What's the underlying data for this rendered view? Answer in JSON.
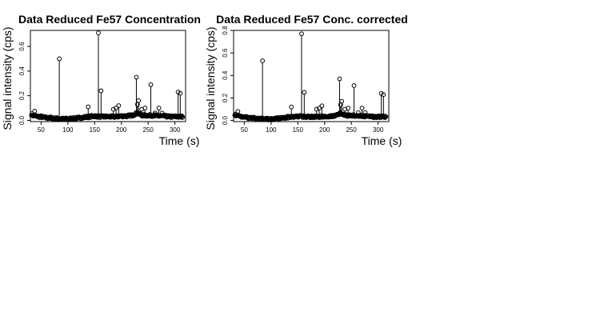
{
  "chart_data": [
    {
      "type": "scatter",
      "title": "Data Reduced Fe57 Concentration",
      "xlabel": "Time (s)",
      "ylabel": "Signal intensity (cps)",
      "xlim": [
        30,
        320
      ],
      "ylim": [
        -0.01,
        0.73
      ],
      "xticks": [
        50,
        100,
        150,
        200,
        250,
        300
      ],
      "yticks": [
        0.0,
        0.2,
        0.4,
        0.6
      ],
      "ytick_labels": [
        "0.0",
        "0.2",
        "0.4",
        "0.6"
      ],
      "grid": false,
      "baseline": [
        [
          32,
          0.05
        ],
        [
          35,
          0.04
        ],
        [
          40,
          0.035
        ],
        [
          45,
          0.03
        ],
        [
          50,
          0.03
        ],
        [
          55,
          0.025
        ],
        [
          60,
          0.02
        ],
        [
          65,
          0.02
        ],
        [
          70,
          0.02
        ],
        [
          75,
          0.015
        ],
        [
          80,
          0.015
        ],
        [
          90,
          0.012
        ],
        [
          100,
          0.012
        ],
        [
          110,
          0.015
        ],
        [
          120,
          0.02
        ],
        [
          130,
          0.025
        ],
        [
          140,
          0.03
        ],
        [
          150,
          0.035
        ],
        [
          160,
          0.03
        ],
        [
          170,
          0.03
        ],
        [
          180,
          0.03
        ],
        [
          190,
          0.03
        ],
        [
          200,
          0.035
        ],
        [
          210,
          0.035
        ],
        [
          220,
          0.04
        ],
        [
          230,
          0.06
        ],
        [
          235,
          0.045
        ],
        [
          240,
          0.04
        ],
        [
          250,
          0.04
        ],
        [
          260,
          0.04
        ],
        [
          270,
          0.035
        ],
        [
          280,
          0.035
        ],
        [
          290,
          0.03
        ],
        [
          300,
          0.03
        ],
        [
          310,
          0.03
        ],
        [
          315,
          0.03
        ]
      ],
      "spikes": [
        [
          38,
          0.075
        ],
        [
          84,
          0.5
        ],
        [
          138,
          0.11
        ],
        [
          157,
          0.71
        ],
        [
          162,
          0.24
        ],
        [
          185,
          0.09
        ],
        [
          190,
          0.1
        ],
        [
          195,
          0.12
        ],
        [
          228,
          0.35
        ],
        [
          230,
          0.13
        ],
        [
          232,
          0.16
        ],
        [
          238,
          0.09
        ],
        [
          244,
          0.1
        ],
        [
          255,
          0.29
        ],
        [
          263,
          0.06
        ],
        [
          270,
          0.1
        ],
        [
          276,
          0.06
        ],
        [
          306,
          0.23
        ],
        [
          310,
          0.22
        ]
      ]
    },
    {
      "type": "scatter",
      "title": "Data Reduced Fe57 Conc. corrected",
      "xlabel": "Time (s)",
      "ylabel": "Signal intensity (cps)",
      "xlim": [
        30,
        320
      ],
      "ylim": [
        -0.01,
        0.8
      ],
      "xticks": [
        50,
        100,
        150,
        200,
        250,
        300
      ],
      "yticks": [
        0.0,
        0.2,
        0.4,
        0.6,
        0.8
      ],
      "ytick_labels": [
        "0.0",
        "0.2",
        "0.4",
        "0.6",
        "0.8"
      ],
      "grid": false,
      "baseline": [
        [
          32,
          0.055
        ],
        [
          35,
          0.045
        ],
        [
          40,
          0.04
        ],
        [
          45,
          0.035
        ],
        [
          50,
          0.03
        ],
        [
          55,
          0.028
        ],
        [
          60,
          0.022
        ],
        [
          65,
          0.022
        ],
        [
          70,
          0.022
        ],
        [
          75,
          0.017
        ],
        [
          80,
          0.017
        ],
        [
          90,
          0.013
        ],
        [
          100,
          0.013
        ],
        [
          110,
          0.017
        ],
        [
          120,
          0.022
        ],
        [
          130,
          0.028
        ],
        [
          140,
          0.033
        ],
        [
          150,
          0.038
        ],
        [
          160,
          0.033
        ],
        [
          170,
          0.033
        ],
        [
          180,
          0.033
        ],
        [
          190,
          0.033
        ],
        [
          200,
          0.038
        ],
        [
          210,
          0.038
        ],
        [
          220,
          0.044
        ],
        [
          230,
          0.066
        ],
        [
          235,
          0.05
        ],
        [
          240,
          0.044
        ],
        [
          250,
          0.044
        ],
        [
          260,
          0.044
        ],
        [
          270,
          0.038
        ],
        [
          280,
          0.038
        ],
        [
          290,
          0.033
        ],
        [
          300,
          0.033
        ],
        [
          310,
          0.033
        ],
        [
          315,
          0.033
        ]
      ],
      "spikes": [
        [
          38,
          0.08
        ],
        [
          84,
          0.53
        ],
        [
          138,
          0.12
        ],
        [
          157,
          0.77
        ],
        [
          162,
          0.25
        ],
        [
          185,
          0.1
        ],
        [
          190,
          0.11
        ],
        [
          195,
          0.13
        ],
        [
          228,
          0.37
        ],
        [
          230,
          0.14
        ],
        [
          232,
          0.17
        ],
        [
          238,
          0.1
        ],
        [
          244,
          0.11
        ],
        [
          255,
          0.31
        ],
        [
          263,
          0.07
        ],
        [
          270,
          0.11
        ],
        [
          276,
          0.07
        ],
        [
          306,
          0.24
        ],
        [
          310,
          0.23
        ]
      ]
    }
  ]
}
